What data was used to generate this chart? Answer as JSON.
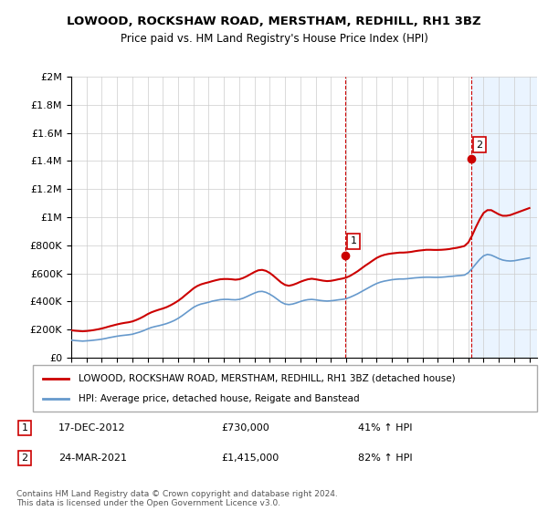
{
  "title": "LOWOOD, ROCKSHAW ROAD, MERSTHAM, REDHILL, RH1 3BZ",
  "subtitle": "Price paid vs. HM Land Registry's House Price Index (HPI)",
  "legend_line1": "LOWOOD, ROCKSHAW ROAD, MERSTHAM, REDHILL, RH1 3BZ (detached house)",
  "legend_line2": "HPI: Average price, detached house, Reigate and Banstead",
  "annotation1_label": "1",
  "annotation1_date": "17-DEC-2012",
  "annotation1_price": "£730,000",
  "annotation1_hpi": "41% ↑ HPI",
  "annotation2_label": "2",
  "annotation2_date": "24-MAR-2021",
  "annotation2_price": "£1,415,000",
  "annotation2_hpi": "82% ↑ HPI",
  "footer1": "Contains HM Land Registry data © Crown copyright and database right 2024.",
  "footer2": "This data is licensed under the Open Government Licence v3.0.",
  "red_color": "#cc0000",
  "blue_color": "#6699cc",
  "shade_color": "#ddeeff",
  "annotation_box_color": "#cc0000",
  "ylim": [
    0,
    2000000
  ],
  "yticks": [
    0,
    200000,
    400000,
    600000,
    800000,
    1000000,
    1200000,
    1400000,
    1600000,
    1800000,
    2000000
  ],
  "ytick_labels": [
    "£0",
    "£200K",
    "£400K",
    "£600K",
    "£800K",
    "£1M",
    "£1.2M",
    "£1.4M",
    "£1.6M",
    "£1.8M",
    "£2M"
  ],
  "xlim_start": 1995.0,
  "xlim_end": 2025.5,
  "sale1_x": 2012.96,
  "sale1_y": 730000,
  "sale2_x": 2021.22,
  "sale2_y": 1415000,
  "shade_start": 2021.22,
  "hpi_years": [
    1995.0,
    1995.25,
    1995.5,
    1995.75,
    1996.0,
    1996.25,
    1996.5,
    1996.75,
    1997.0,
    1997.25,
    1997.5,
    1997.75,
    1998.0,
    1998.25,
    1998.5,
    1998.75,
    1999.0,
    1999.25,
    1999.5,
    1999.75,
    2000.0,
    2000.25,
    2000.5,
    2000.75,
    2001.0,
    2001.25,
    2001.5,
    2001.75,
    2002.0,
    2002.25,
    2002.5,
    2002.75,
    2003.0,
    2003.25,
    2003.5,
    2003.75,
    2004.0,
    2004.25,
    2004.5,
    2004.75,
    2005.0,
    2005.25,
    2005.5,
    2005.75,
    2006.0,
    2006.25,
    2006.5,
    2006.75,
    2007.0,
    2007.25,
    2007.5,
    2007.75,
    2008.0,
    2008.25,
    2008.5,
    2008.75,
    2009.0,
    2009.25,
    2009.5,
    2009.75,
    2010.0,
    2010.25,
    2010.5,
    2010.75,
    2011.0,
    2011.25,
    2011.5,
    2011.75,
    2012.0,
    2012.25,
    2012.5,
    2012.75,
    2013.0,
    2013.25,
    2013.5,
    2013.75,
    2014.0,
    2014.25,
    2014.5,
    2014.75,
    2015.0,
    2015.25,
    2015.5,
    2015.75,
    2016.0,
    2016.25,
    2016.5,
    2016.75,
    2017.0,
    2017.25,
    2017.5,
    2017.75,
    2018.0,
    2018.25,
    2018.5,
    2018.75,
    2019.0,
    2019.25,
    2019.5,
    2019.75,
    2020.0,
    2020.25,
    2020.5,
    2020.75,
    2021.0,
    2021.25,
    2021.5,
    2021.75,
    2022.0,
    2022.25,
    2022.5,
    2022.75,
    2023.0,
    2023.25,
    2023.5,
    2023.75,
    2024.0,
    2024.25,
    2024.5,
    2024.75,
    2025.0
  ],
  "hpi_values": [
    125000,
    122000,
    120000,
    118000,
    120000,
    122000,
    125000,
    128000,
    132000,
    137000,
    143000,
    148000,
    153000,
    157000,
    160000,
    163000,
    167000,
    175000,
    183000,
    193000,
    205000,
    215000,
    222000,
    228000,
    235000,
    243000,
    253000,
    265000,
    280000,
    298000,
    318000,
    338000,
    358000,
    372000,
    382000,
    388000,
    395000,
    403000,
    408000,
    413000,
    415000,
    415000,
    413000,
    412000,
    415000,
    423000,
    435000,
    448000,
    460000,
    470000,
    472000,
    465000,
    452000,
    435000,
    415000,
    395000,
    382000,
    378000,
    382000,
    390000,
    400000,
    408000,
    413000,
    415000,
    412000,
    408000,
    405000,
    403000,
    405000,
    408000,
    412000,
    415000,
    420000,
    430000,
    442000,
    455000,
    470000,
    485000,
    500000,
    515000,
    528000,
    538000,
    545000,
    550000,
    555000,
    558000,
    560000,
    560000,
    562000,
    565000,
    568000,
    570000,
    572000,
    573000,
    573000,
    572000,
    572000,
    573000,
    575000,
    578000,
    580000,
    583000,
    585000,
    588000,
    605000,
    635000,
    668000,
    700000,
    725000,
    735000,
    730000,
    718000,
    705000,
    695000,
    690000,
    688000,
    690000,
    695000,
    700000,
    705000,
    710000
  ],
  "red_years": [
    1995.0,
    1995.25,
    1995.5,
    1995.75,
    1996.0,
    1996.25,
    1996.5,
    1996.75,
    1997.0,
    1997.25,
    1997.5,
    1997.75,
    1998.0,
    1998.25,
    1998.5,
    1998.75,
    1999.0,
    1999.25,
    1999.5,
    1999.75,
    2000.0,
    2000.25,
    2000.5,
    2000.75,
    2001.0,
    2001.25,
    2001.5,
    2001.75,
    2002.0,
    2002.25,
    2002.5,
    2002.75,
    2003.0,
    2003.25,
    2003.5,
    2003.75,
    2004.0,
    2004.25,
    2004.5,
    2004.75,
    2005.0,
    2005.25,
    2005.5,
    2005.75,
    2006.0,
    2006.25,
    2006.5,
    2006.75,
    2007.0,
    2007.25,
    2007.5,
    2007.75,
    2008.0,
    2008.25,
    2008.5,
    2008.75,
    2009.0,
    2009.25,
    2009.5,
    2009.75,
    2010.0,
    2010.25,
    2010.5,
    2010.75,
    2011.0,
    2011.25,
    2011.5,
    2011.75,
    2012.0,
    2012.25,
    2012.5,
    2012.75,
    2013.0,
    2013.25,
    2013.5,
    2013.75,
    2014.0,
    2014.25,
    2014.5,
    2014.75,
    2015.0,
    2015.25,
    2015.5,
    2015.75,
    2016.0,
    2016.25,
    2016.5,
    2016.75,
    2017.0,
    2017.25,
    2017.5,
    2017.75,
    2018.0,
    2018.25,
    2018.5,
    2018.75,
    2019.0,
    2019.25,
    2019.5,
    2019.75,
    2020.0,
    2020.25,
    2020.5,
    2020.75,
    2021.0,
    2021.25,
    2021.5,
    2021.75,
    2022.0,
    2022.25,
    2022.5,
    2022.75,
    2023.0,
    2023.25,
    2023.5,
    2023.75,
    2024.0,
    2024.25,
    2024.5,
    2024.75,
    2025.0
  ],
  "red_values": [
    195000,
    192000,
    190000,
    188000,
    190000,
    193000,
    197000,
    202000,
    208000,
    215000,
    223000,
    230000,
    237000,
    243000,
    248000,
    252000,
    258000,
    268000,
    280000,
    294000,
    310000,
    323000,
    333000,
    342000,
    350000,
    360000,
    373000,
    388000,
    405000,
    425000,
    448000,
    470000,
    493000,
    510000,
    522000,
    530000,
    537000,
    545000,
    552000,
    558000,
    560000,
    560000,
    558000,
    555000,
    558000,
    567000,
    580000,
    595000,
    610000,
    622000,
    625000,
    618000,
    603000,
    582000,
    558000,
    535000,
    518000,
    512000,
    518000,
    528000,
    540000,
    550000,
    558000,
    562000,
    558000,
    553000,
    548000,
    545000,
    547000,
    552000,
    558000,
    563000,
    570000,
    582000,
    598000,
    615000,
    635000,
    655000,
    673000,
    692000,
    710000,
    723000,
    732000,
    738000,
    742000,
    745000,
    748000,
    748000,
    750000,
    753000,
    758000,
    762000,
    765000,
    768000,
    768000,
    767000,
    767000,
    768000,
    770000,
    773000,
    778000,
    782000,
    788000,
    795000,
    820000,
    870000,
    930000,
    985000,
    1030000,
    1050000,
    1050000,
    1035000,
    1020000,
    1010000,
    1010000,
    1015000,
    1025000,
    1035000,
    1045000,
    1055000,
    1065000
  ]
}
